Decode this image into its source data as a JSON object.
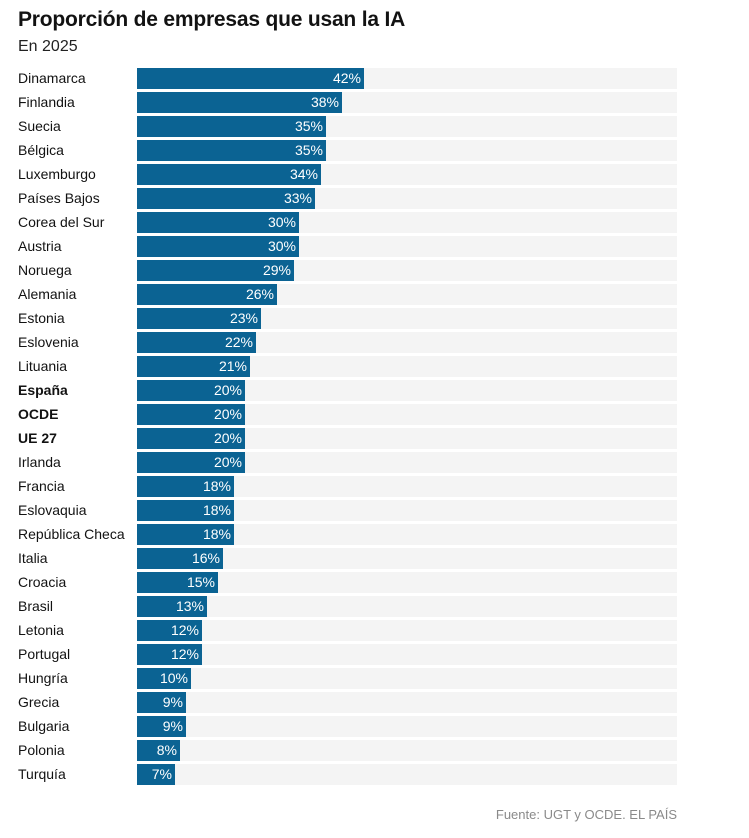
{
  "chart_data": {
    "type": "bar",
    "orientation": "horizontal",
    "title": "Proporción de empresas que usan la IA",
    "subtitle": "En 2025",
    "source": "Fuente: UGT y OCDE. EL PAÍS",
    "value_suffix": "%",
    "xlim": [
      0,
      100
    ],
    "bar_color": "#0b6393",
    "track_color": "#f4f4f4",
    "categories": [
      "Dinamarca",
      "Finlandia",
      "Suecia",
      "Bélgica",
      "Luxemburgo",
      "Países Bajos",
      "Corea del Sur",
      "Austria",
      "Noruega",
      "Alemania",
      "Estonia",
      "Eslovenia",
      "Lituania",
      "España",
      "OCDE",
      "UE 27",
      "Irlanda",
      "Francia",
      "Eslovaquia",
      "República Checa",
      "Italia",
      "Croacia",
      "Brasil",
      "Letonia",
      "Portugal",
      "Hungría",
      "Grecia",
      "Bulgaria",
      "Polonia",
      "Turquía"
    ],
    "values": [
      42,
      38,
      35,
      35,
      34,
      33,
      30,
      30,
      29,
      26,
      23,
      22,
      21,
      20,
      20,
      20,
      20,
      18,
      18,
      18,
      16,
      15,
      13,
      12,
      12,
      10,
      9,
      9,
      8,
      7
    ],
    "value_labels": [
      "42%",
      "38%",
      "35%",
      "35%",
      "34%",
      "33%",
      "30%",
      "30%",
      "29%",
      "26%",
      "23%",
      "22%",
      "21%",
      "20%",
      "20%",
      "20%",
      "20%",
      "18%",
      "18%",
      "18%",
      "16%",
      "15%",
      "13%",
      "12%",
      "12%",
      "10%",
      "9%",
      "9%",
      "8%",
      "7%"
    ],
    "highlighted": [
      "España",
      "OCDE",
      "UE 27"
    ]
  }
}
